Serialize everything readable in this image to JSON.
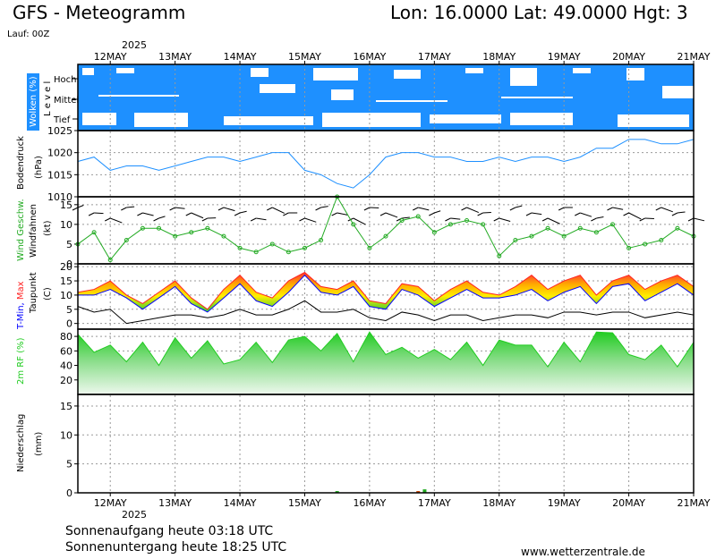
{
  "header": {
    "title": "GFS - Meteogramm",
    "coords": "Lon: 16.0000 Lat: 49.0000 Hgt: 3",
    "run": "Lauf: 00Z",
    "year": "2025"
  },
  "footer": {
    "sunrise": "Sonnenaufgang heute 03:18 UTC",
    "sunset": "Sonnenuntergang heute 18:25 UTC",
    "site": "www.wetterzentrale.de"
  },
  "chart_data": {
    "type": "line",
    "dates": [
      "12MAY",
      "13MAY",
      "14MAY",
      "15MAY",
      "16MAY",
      "17MAY",
      "18MAY",
      "19MAY",
      "20MAY",
      "21MAY"
    ],
    "time_range_days": [
      11.5,
      21.0
    ],
    "colors": {
      "cloud_sky": "#1e90ff",
      "pressure": "#1e90ff",
      "wind": "#22aa22",
      "tmin": "#0000ff",
      "tmax": "#ff2222",
      "humidity": "#22cc22"
    },
    "panels": [
      {
        "id": "clouds",
        "ylabel": "Wolken (%)",
        "ylabel2": "L e v e l",
        "levels": [
          "Hoch",
          "Mittel",
          "Tief"
        ]
      },
      {
        "id": "pressure",
        "ylabel": "Bodendruck",
        "ylabel2": "(hPa)",
        "ylim": [
          1010,
          1025
        ],
        "yticks": [
          1010,
          1015,
          1020,
          1025
        ],
        "series": [
          {
            "name": "Bodendruck",
            "x": [
              11.5,
              11.75,
              12.0,
              12.25,
              12.5,
              12.75,
              13.0,
              13.25,
              13.5,
              13.75,
              14.0,
              14.25,
              14.5,
              14.75,
              15.0,
              15.25,
              15.5,
              15.75,
              16.0,
              16.25,
              16.5,
              16.75,
              17.0,
              17.25,
              17.5,
              17.75,
              18.0,
              18.25,
              18.5,
              18.75,
              19.0,
              19.25,
              19.5,
              19.75,
              20.0,
              20.25,
              20.5,
              20.75,
              21.0
            ],
            "values": [
              1018,
              1019,
              1016,
              1017,
              1017,
              1016,
              1017,
              1018,
              1019,
              1019,
              1018,
              1019,
              1020,
              1020,
              1016,
              1015,
              1013,
              1012,
              1015,
              1019,
              1020,
              1020,
              1019,
              1019,
              1018,
              1018,
              1019,
              1018,
              1019,
              1019,
              1018,
              1019,
              1021,
              1021,
              1023,
              1023,
              1022,
              1022,
              1023
            ]
          }
        ]
      },
      {
        "id": "wind",
        "ylabel": "Wind Geschw.",
        "ylabel2": "Windfahnen",
        "ylabel3": "(kt)",
        "ylim": [
          0,
          17
        ],
        "yticks": [
          0,
          5,
          10,
          15
        ],
        "series": [
          {
            "name": "Wind Geschw.",
            "x": [
              11.5,
              11.75,
              12.0,
              12.25,
              12.5,
              12.75,
              13.0,
              13.25,
              13.5,
              13.75,
              14.0,
              14.25,
              14.5,
              14.75,
              15.0,
              15.25,
              15.5,
              15.75,
              16.0,
              16.25,
              16.5,
              16.75,
              17.0,
              17.25,
              17.5,
              17.75,
              18.0,
              18.25,
              18.5,
              18.75,
              19.0,
              19.25,
              19.5,
              19.75,
              20.0,
              20.25,
              20.5,
              20.75,
              21.0
            ],
            "values": [
              5,
              8,
              1,
              6,
              9,
              9,
              7,
              8,
              9,
              7,
              4,
              3,
              5,
              3,
              4,
              6,
              17,
              10,
              4,
              7,
              11,
              12,
              8,
              10,
              11,
              10,
              2,
              6,
              7,
              9,
              7,
              9,
              8,
              10,
              4,
              5,
              6,
              9,
              7
            ]
          }
        ]
      },
      {
        "id": "temperature",
        "ylabel": "T-Min,",
        "ylabel_max": "Max",
        "ylabel2": "Taupunkt",
        "ylabel3": "(C)",
        "ylim": [
          -2,
          21
        ],
        "yticks": [
          0,
          5,
          10,
          15,
          20
        ],
        "series": [
          {
            "name": "T-Min",
            "x": [
              11.5,
              11.75,
              12.0,
              12.25,
              12.5,
              12.75,
              13.0,
              13.25,
              13.5,
              13.75,
              14.0,
              14.25,
              14.5,
              14.75,
              15.0,
              15.25,
              15.5,
              15.75,
              16.0,
              16.25,
              16.5,
              16.75,
              17.0,
              17.25,
              17.5,
              17.75,
              18.0,
              18.25,
              18.5,
              18.75,
              19.0,
              19.25,
              19.5,
              19.75,
              20.0,
              20.25,
              20.5,
              20.75,
              21.0
            ],
            "values": [
              10,
              10,
              12,
              9,
              5,
              9,
              13,
              7,
              4,
              9,
              14,
              8,
              6,
              11,
              17,
              11,
              10,
              13,
              6,
              5,
              12,
              10,
              6,
              9,
              12,
              9,
              9,
              10,
              12,
              8,
              11,
              13,
              7,
              13,
              14,
              8,
              11,
              14,
              10
            ]
          },
          {
            "name": "Max",
            "x": [
              11.5,
              11.75,
              12.0,
              12.25,
              12.5,
              12.75,
              13.0,
              13.25,
              13.5,
              13.75,
              14.0,
              14.25,
              14.5,
              14.75,
              15.0,
              15.25,
              15.5,
              15.75,
              16.0,
              16.25,
              16.5,
              16.75,
              17.0,
              17.25,
              17.5,
              17.75,
              18.0,
              18.25,
              18.5,
              18.75,
              19.0,
              19.25,
              19.5,
              19.75,
              20.0,
              20.25,
              20.5,
              20.75,
              21.0
            ],
            "values": [
              11,
              12,
              15,
              10,
              7,
              11,
              15,
              9,
              5,
              12,
              17,
              11,
              9,
              15,
              18,
              13,
              12,
              15,
              8,
              7,
              14,
              13,
              8,
              12,
              15,
              11,
              10,
              13,
              17,
              12,
              15,
              17,
              10,
              15,
              17,
              12,
              15,
              17,
              13
            ]
          },
          {
            "name": "Taupunkt",
            "x": [
              11.5,
              11.75,
              12.0,
              12.25,
              12.5,
              12.75,
              13.0,
              13.25,
              13.5,
              13.75,
              14.0,
              14.25,
              14.5,
              14.75,
              15.0,
              15.25,
              15.5,
              15.75,
              16.0,
              16.25,
              16.5,
              16.75,
              17.0,
              17.25,
              17.5,
              17.75,
              18.0,
              18.25,
              18.5,
              18.75,
              19.0,
              19.25,
              19.5,
              19.75,
              20.0,
              20.25,
              20.5,
              20.75,
              21.0
            ],
            "values": [
              6,
              4,
              5,
              0,
              1,
              2,
              3,
              3,
              2,
              3,
              5,
              3,
              3,
              5,
              8,
              4,
              4,
              5,
              2,
              1,
              4,
              3,
              1,
              3,
              3,
              1,
              2,
              3,
              3,
              2,
              4,
              4,
              3,
              4,
              4,
              2,
              3,
              4,
              3
            ]
          }
        ]
      },
      {
        "id": "humidity",
        "ylabel": "2m RF (%)",
        "ylim": [
          0,
          90
        ],
        "yticks": [
          20,
          40,
          60,
          80
        ],
        "series": [
          {
            "name": "2m RF (%)",
            "x": [
              11.5,
              11.75,
              12.0,
              12.25,
              12.5,
              12.75,
              13.0,
              13.25,
              13.5,
              13.75,
              14.0,
              14.25,
              14.5,
              14.75,
              15.0,
              15.25,
              15.5,
              15.75,
              16.0,
              16.25,
              16.5,
              16.75,
              17.0,
              17.25,
              17.5,
              17.75,
              18.0,
              18.25,
              18.5,
              18.75,
              19.0,
              19.25,
              19.5,
              19.75,
              20.0,
              20.25,
              20.5,
              20.75,
              21.0
            ],
            "values": [
              83,
              58,
              68,
              45,
              72,
              40,
              78,
              50,
              74,
              42,
              48,
              72,
              44,
              75,
              80,
              60,
              84,
              45,
              86,
              55,
              65,
              50,
              62,
              48,
              72,
              40,
              75,
              68,
              68,
              38,
              72,
              45,
              86,
              85,
              55,
              48,
              68,
              38,
              72
            ]
          }
        ]
      },
      {
        "id": "precipitation",
        "ylabel": "Niederschlag",
        "ylabel2": "(mm)",
        "ylim": [
          0,
          17
        ],
        "yticks": [
          0,
          5,
          10,
          15
        ],
        "series": [
          {
            "name": "Niederschlag",
            "x": [
              15.5,
              16.75,
              16.85
            ],
            "values": [
              0.3,
              0.3,
              0.6
            ]
          }
        ]
      }
    ]
  }
}
